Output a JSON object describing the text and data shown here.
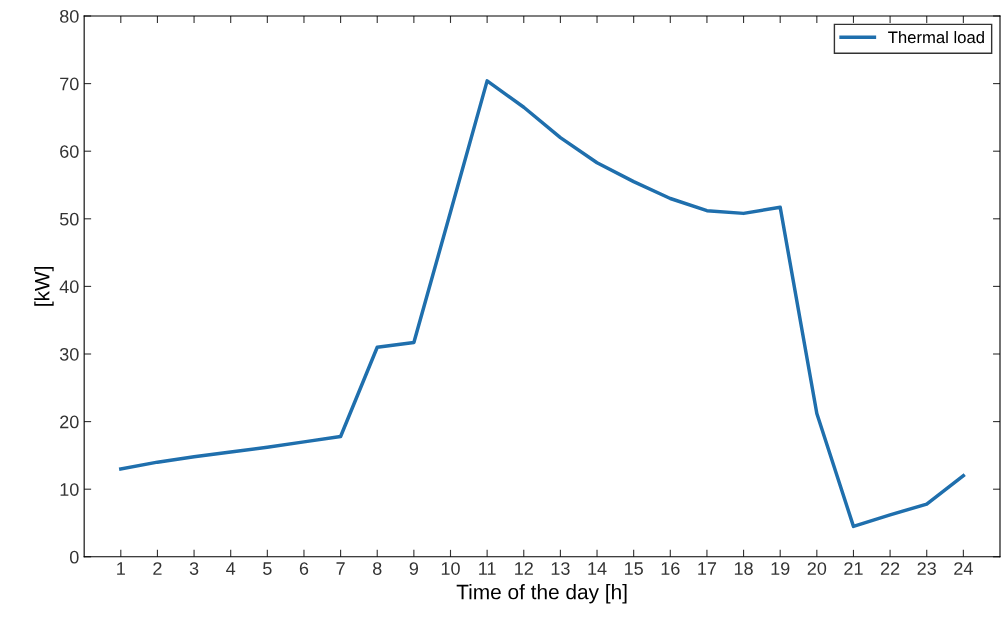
{
  "chart_data": {
    "type": "line",
    "xlabel": "Time of the day [h]",
    "ylabel": "[kW]",
    "x": [
      1,
      2,
      3,
      4,
      5,
      6,
      7,
      8,
      9,
      10,
      11,
      12,
      13,
      14,
      15,
      16,
      17,
      18,
      19,
      20,
      21,
      22,
      23,
      24
    ],
    "series": [
      {
        "name": "Thermal load",
        "color": "#1f6fad",
        "values": [
          13.0,
          14.0,
          14.8,
          15.5,
          16.2,
          17.0,
          17.8,
          31.0,
          31.7,
          51.0,
          70.4,
          66.5,
          62.0,
          58.3,
          55.5,
          53.0,
          51.2,
          50.8,
          51.7,
          21.2,
          4.5,
          6.2,
          7.8,
          12.0
        ]
      }
    ],
    "xlim": [
      0,
      25
    ],
    "xticks": [
      1,
      2,
      3,
      4,
      5,
      6,
      7,
      8,
      9,
      10,
      11,
      12,
      13,
      14,
      15,
      16,
      17,
      18,
      19,
      20,
      21,
      22,
      23,
      24
    ],
    "ylim": [
      0,
      80
    ],
    "yticks": [
      0,
      10,
      20,
      30,
      40,
      50,
      60,
      70,
      80
    ],
    "grid": false,
    "legend": "top right",
    "marker": "none",
    "line_style": "solid"
  }
}
